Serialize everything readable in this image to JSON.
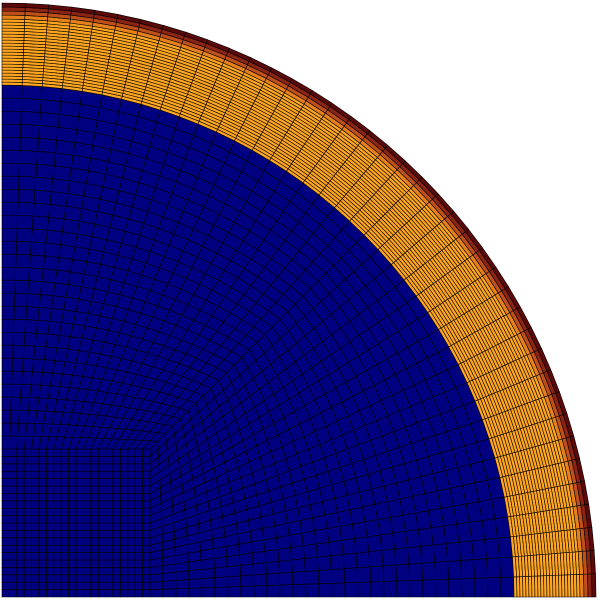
{
  "viewport": {
    "background": "#ffffff"
  },
  "mesh": {
    "description_type": "quarter-disk structured mesh",
    "regions": [
      {
        "name": "core",
        "color": "#000080"
      },
      {
        "name": "shell",
        "color": "#ffa520"
      },
      {
        "name": "outer-layer-1",
        "color": "#e6801a"
      },
      {
        "name": "outer-layer-2",
        "color": "#c0501a"
      },
      {
        "name": "outer-layer-3",
        "color": "#8c2414"
      },
      {
        "name": "outer-layer-4",
        "color": "#5a0a0a"
      }
    ],
    "edge_color": "#000000"
  }
}
